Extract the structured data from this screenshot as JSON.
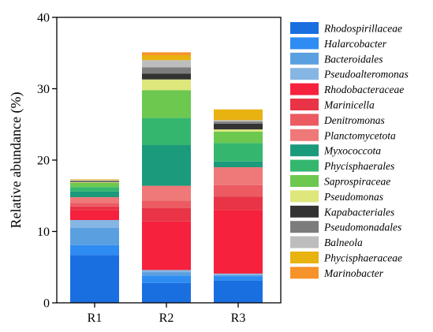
{
  "chart_data": {
    "type": "bar",
    "stacked": true,
    "ylabel": "Relative abundance (%)",
    "xlabel": "",
    "ylim": [
      0,
      40
    ],
    "yticks": [
      0,
      10,
      20,
      30,
      40
    ],
    "grid": false,
    "legend_position": "right",
    "categories": [
      "R1",
      "R2",
      "R3"
    ],
    "series": [
      {
        "name": "Rhodospirillaceae",
        "color": "#1a6fe0",
        "values": [
          6.7,
          2.8,
          3.1
        ]
      },
      {
        "name": "Halarcobacter",
        "color": "#2e8cf2",
        "values": [
          1.4,
          1.0,
          0.6
        ]
      },
      {
        "name": "Bacteroidales",
        "color": "#5a9fe0",
        "values": [
          2.4,
          0.5,
          0.2
        ]
      },
      {
        "name": "Pseudoalteromonas",
        "color": "#86b6e3",
        "values": [
          1.1,
          0.3,
          0.2
        ]
      },
      {
        "name": "Rhodobacteraceae",
        "color": "#f5213d",
        "values": [
          1.4,
          6.8,
          8.9
        ]
      },
      {
        "name": "Marinicella",
        "color": "#e83446",
        "values": [
          0.5,
          1.9,
          1.9
        ]
      },
      {
        "name": "Denitromonas",
        "color": "#ec5a62",
        "values": [
          0.5,
          1.0,
          1.6
        ]
      },
      {
        "name": "Planctomycetota",
        "color": "#ef7878",
        "values": [
          0.8,
          2.1,
          2.5
        ]
      },
      {
        "name": "Myxococcota",
        "color": "#1c9a7c",
        "values": [
          0.8,
          5.7,
          0.8
        ]
      },
      {
        "name": "Phycisphaerales",
        "color": "#35b66f",
        "values": [
          0.6,
          3.8,
          2.6
        ]
      },
      {
        "name": "Saprospiraceae",
        "color": "#6cc84f",
        "values": [
          0.6,
          3.9,
          1.6
        ]
      },
      {
        "name": "Pseudomonas",
        "color": "#dde77c",
        "values": [
          0.1,
          1.5,
          0.3
        ]
      },
      {
        "name": "Kapabacteriales",
        "color": "#333333",
        "values": [
          0.1,
          0.8,
          0.8
        ]
      },
      {
        "name": "Pseudomonadales",
        "color": "#7c7c7c",
        "values": [
          0.1,
          0.9,
          0.3
        ]
      },
      {
        "name": "Balneola",
        "color": "#bdbdbd",
        "values": [
          0.1,
          1.0,
          0.2
        ]
      },
      {
        "name": "Phycisphaeraceae",
        "color": "#e8b210",
        "values": [
          0.1,
          0.7,
          1.5
        ]
      },
      {
        "name": "Marinobacter",
        "color": "#f6922a",
        "values": [
          0.0,
          0.4,
          0.0
        ]
      }
    ]
  }
}
